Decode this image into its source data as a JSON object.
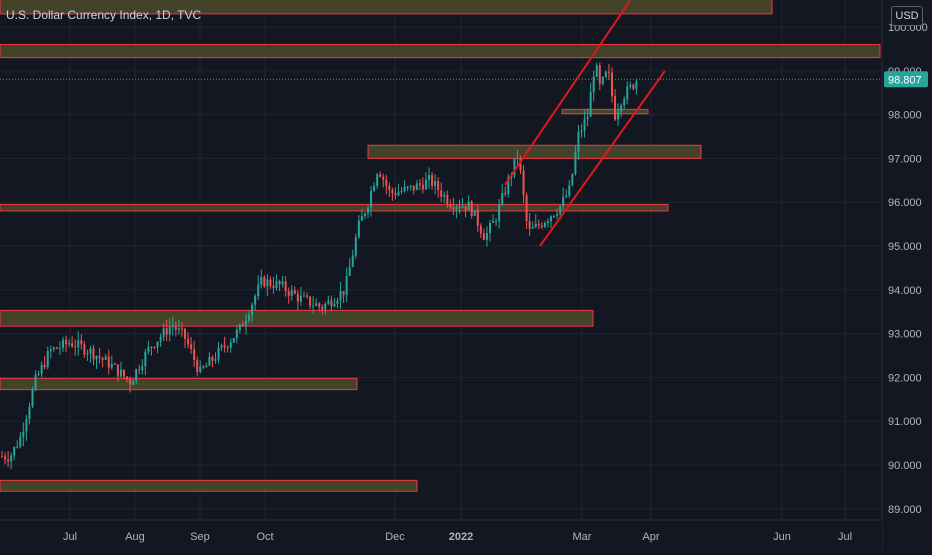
{
  "header": {
    "title": "U.S. Dollar Currency Index, 1D, TVC"
  },
  "price_axis": {
    "currency": "USD",
    "last_price_label": "98.807"
  },
  "colors": {
    "background": "#131722",
    "grid": "#1f2430",
    "up": "#26a69a",
    "down": "#ef5350",
    "zone_fill": "#4d4a2a",
    "zone_border": "#f23645",
    "trend": "#e0171b",
    "axis_text": "#b2b5be",
    "badge": "#26a69a"
  },
  "chart_data": {
    "type": "candlestick",
    "title": "U.S. Dollar Currency Index, 1D, TVC",
    "ylim": [
      88.7,
      100.6
    ],
    "y_ticks": [
      "89.000",
      "90.000",
      "91.000",
      "92.000",
      "93.000",
      "94.000",
      "95.000",
      "96.000",
      "97.000",
      "98.000",
      "99.000",
      "100.000"
    ],
    "x_ticks": [
      "Jul",
      "Aug",
      "Sep",
      "Oct",
      "Dec",
      "2022",
      "Mar",
      "Apr",
      "Jun",
      "Jul"
    ],
    "grid": true,
    "last_price": 98.807,
    "price_anchors": [
      [
        0,
        90.2
      ],
      [
        10,
        90.2
      ],
      [
        20,
        90.6
      ],
      [
        35,
        91.9
      ],
      [
        50,
        92.6
      ],
      [
        70,
        92.8
      ],
      [
        90,
        92.6
      ],
      [
        110,
        92.3
      ],
      [
        130,
        91.9
      ],
      [
        150,
        92.7
      ],
      [
        172,
        93.2
      ],
      [
        185,
        92.9
      ],
      [
        200,
        92.1
      ],
      [
        220,
        92.6
      ],
      [
        240,
        93.1
      ],
      [
        262,
        94.2
      ],
      [
        280,
        94.1
      ],
      [
        300,
        93.8
      ],
      [
        322,
        93.6
      ],
      [
        345,
        94.0
      ],
      [
        358,
        95.4
      ],
      [
        368,
        96.0
      ],
      [
        378,
        96.8
      ],
      [
        390,
        96.2
      ],
      [
        410,
        96.3
      ],
      [
        430,
        96.5
      ],
      [
        450,
        96.0
      ],
      [
        470,
        95.9
      ],
      [
        485,
        95.2
      ],
      [
        495,
        95.6
      ],
      [
        510,
        96.6
      ],
      [
        518,
        97.1
      ],
      [
        528,
        95.3
      ],
      [
        540,
        95.5
      ],
      [
        560,
        95.9
      ],
      [
        570,
        96.3
      ],
      [
        578,
        97.5
      ],
      [
        588,
        98.0
      ],
      [
        595,
        99.2
      ],
      [
        600,
        98.6
      ],
      [
        608,
        99.0
      ],
      [
        615,
        98.0
      ],
      [
        622,
        98.4
      ],
      [
        630,
        98.6
      ],
      [
        637,
        98.8
      ]
    ],
    "zones": [
      {
        "low": 100.3,
        "high": 101.0,
        "x_start": 0,
        "x_end": 772
      },
      {
        "low": 99.3,
        "high": 99.6,
        "x_start": 0,
        "x_end": 880
      },
      {
        "low": 98.02,
        "high": 98.12,
        "x_start": 562,
        "x_end": 648
      },
      {
        "low": 97.0,
        "high": 97.3,
        "x_start": 368,
        "x_end": 701
      },
      {
        "low": 95.8,
        "high": 95.95,
        "x_start": 0,
        "x_end": 668
      },
      {
        "low": 93.17,
        "high": 93.53,
        "x_start": 0,
        "x_end": 593
      },
      {
        "low": 91.72,
        "high": 91.98,
        "x_start": 0,
        "x_end": 357
      },
      {
        "low": 89.4,
        "high": 89.65,
        "x_start": 0,
        "x_end": 417
      }
    ],
    "trend_lines": [
      {
        "start": [
          505,
          96.4
        ],
        "end": [
          630,
          100.6
        ]
      },
      {
        "start": [
          540,
          95.0
        ],
        "end": [
          665,
          99.0
        ]
      }
    ]
  }
}
